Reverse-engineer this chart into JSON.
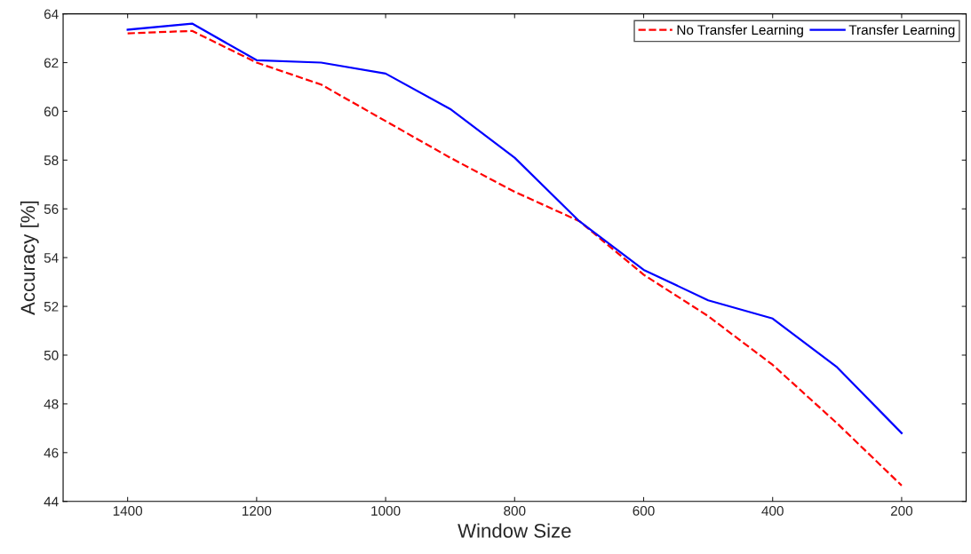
{
  "chart_data": {
    "type": "line",
    "xlabel": "Window Size",
    "ylabel": "Accuracy [%]",
    "x": [
      1400,
      1300,
      1200,
      1100,
      1000,
      900,
      800,
      700,
      600,
      500,
      400,
      300,
      200
    ],
    "series": [
      {
        "name": "No Transfer Learning",
        "color": "#ff0000",
        "line_style": "dashed",
        "values": [
          63.2,
          63.3,
          62.0,
          61.1,
          59.6,
          58.1,
          56.7,
          55.5,
          53.3,
          51.6,
          49.6,
          47.2,
          44.65
        ]
      },
      {
        "name": "Transfer Learning",
        "color": "#0000ff",
        "line_style": "solid",
        "values": [
          63.35,
          63.6,
          62.1,
          62.0,
          61.55,
          60.1,
          58.1,
          55.5,
          53.5,
          52.25,
          51.5,
          49.5,
          46.8
        ]
      }
    ],
    "xlim": [
      1500,
      100
    ],
    "xticks": [
      1400,
      1200,
      1000,
      800,
      600,
      400,
      200
    ],
    "ylim": [
      44,
      64
    ],
    "yticks": [
      44,
      46,
      48,
      50,
      52,
      54,
      56,
      58,
      60,
      62,
      64
    ],
    "grid": false,
    "legend": "top right",
    "marker": "none"
  }
}
